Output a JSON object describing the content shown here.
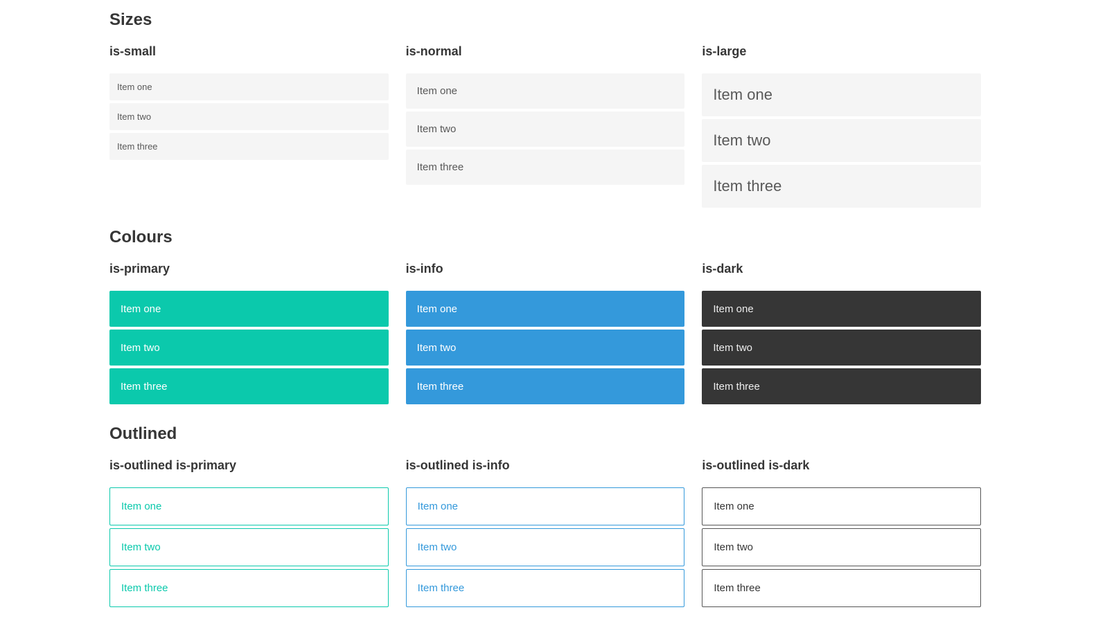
{
  "colors": {
    "primary": "#0bc9ac",
    "info": "#3499db",
    "dark": "#363636",
    "item_bg": "#f5f5f5",
    "item_text": "#595959",
    "heading_text": "#363636",
    "text_on_color": "#ffffff",
    "text_on_dark": "#eeeeee",
    "dark_outline_border": "#555555"
  },
  "sections": [
    {
      "title": "Sizes",
      "columns": [
        {
          "label": "is-small",
          "items": [
            "Item one",
            "Item two",
            "Item three"
          ]
        },
        {
          "label": "is-normal",
          "items": [
            "Item one",
            "Item two",
            "Item three"
          ]
        },
        {
          "label": "is-large",
          "items": [
            "Item one",
            "Item two",
            "Item three"
          ]
        }
      ]
    },
    {
      "title": "Colours",
      "columns": [
        {
          "label": "is-primary",
          "items": [
            "Item one",
            "Item two",
            "Item three"
          ]
        },
        {
          "label": "is-info",
          "items": [
            "Item one",
            "Item two",
            "Item three"
          ]
        },
        {
          "label": "is-dark",
          "items": [
            "Item one",
            "Item two",
            "Item three"
          ]
        }
      ]
    },
    {
      "title": "Outlined",
      "columns": [
        {
          "label": "is-outlined is-primary",
          "items": [
            "Item one",
            "Item two",
            "Item three"
          ]
        },
        {
          "label": "is-outlined is-info",
          "items": [
            "Item one",
            "Item two",
            "Item three"
          ]
        },
        {
          "label": "is-outlined is-dark",
          "items": [
            "Item one",
            "Item two",
            "Item three"
          ]
        }
      ]
    }
  ]
}
